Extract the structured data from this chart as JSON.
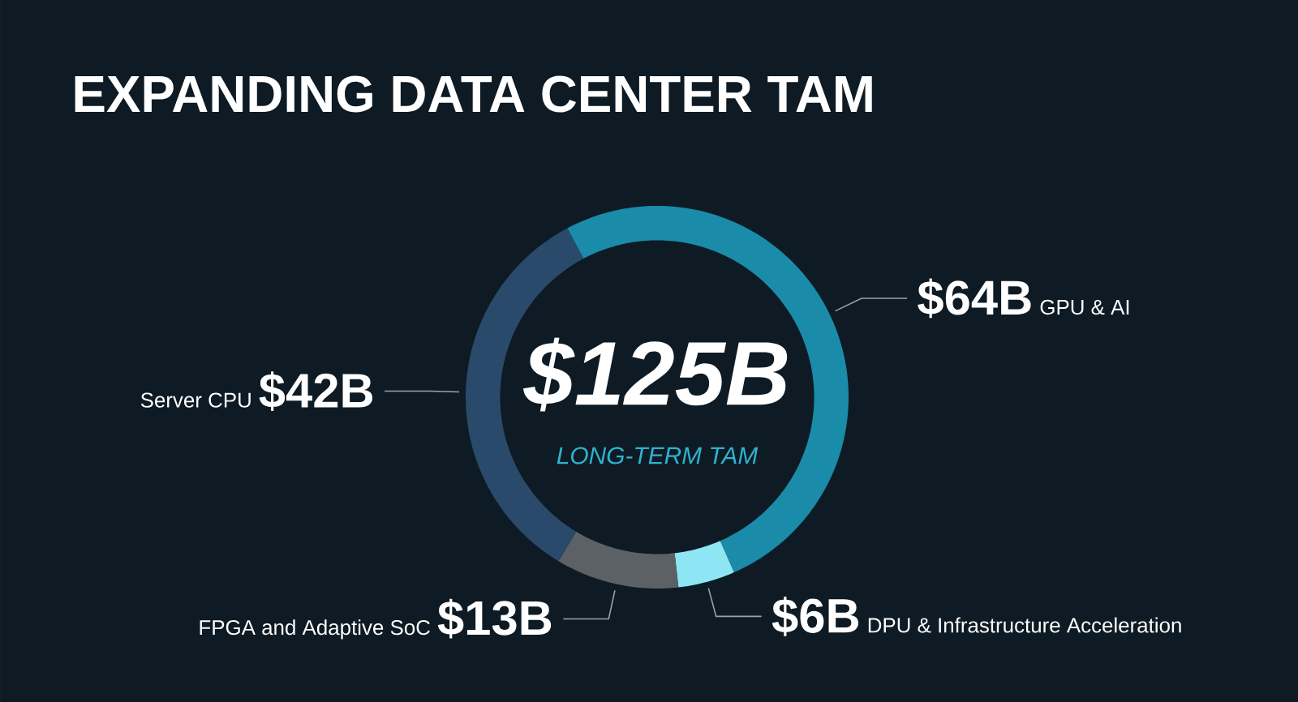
{
  "chart_data": {
    "type": "donut",
    "title": "EXPANDING DATA CENTER TAM",
    "categories": [
      "GPU & AI",
      "DPU & Infrastructure Acceleration",
      "FPGA and Adaptive SoC",
      "Server CPU"
    ],
    "values": [
      64,
      6,
      13,
      42
    ],
    "colors": [
      "#1a8ba8",
      "#8ee6f5",
      "#5c6166",
      "#294a6b"
    ],
    "value_labels": [
      "$64B",
      "$6B",
      "$13B",
      "$42B"
    ],
    "annotations": [
      "$125B",
      "LONG-TERM TAM"
    ]
  }
}
